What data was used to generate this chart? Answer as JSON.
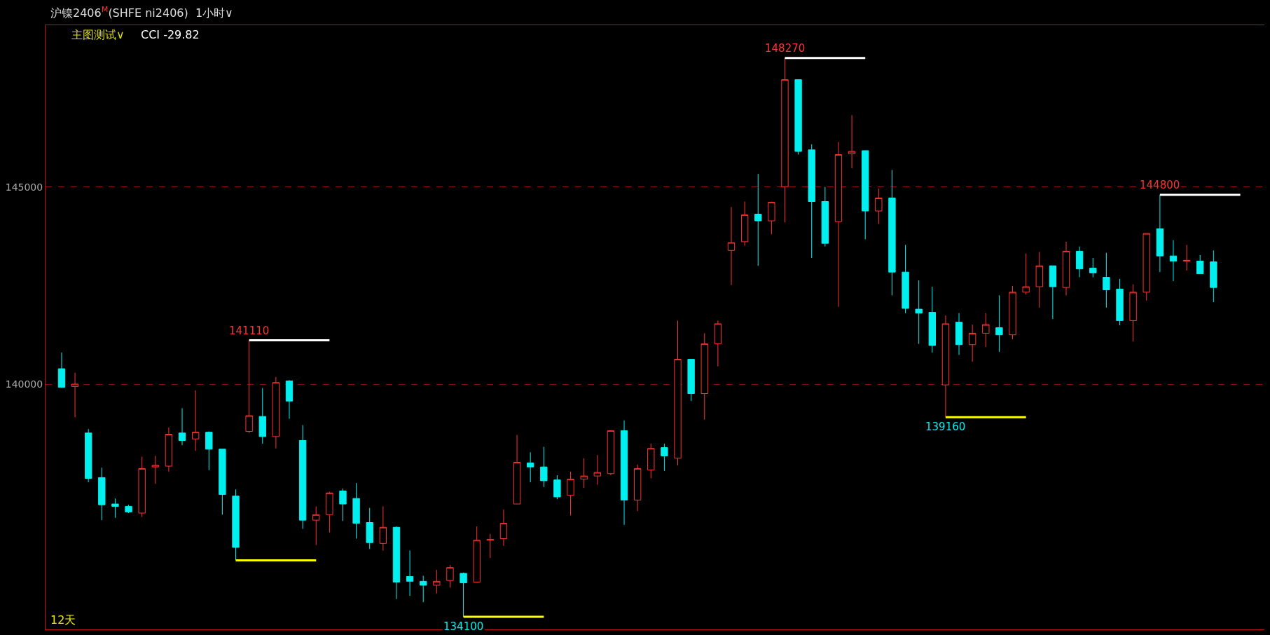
{
  "chart_data": {
    "type": "candlestick",
    "title": "沪镍2406$^{M}$(SHFE ni2406)  1小时∨",
    "subtitle": "主图测试∨",
    "annotations": [
      "CCI -29.82",
      "12天"
    ],
    "categories": [
      null,
      null,
      null,
      null,
      null,
      null,
      null,
      null,
      null,
      null,
      null,
      null,
      null,
      null,
      null,
      null,
      null,
      null,
      null,
      null,
      null,
      null,
      null,
      null,
      null,
      null,
      null,
      null,
      null,
      null,
      null,
      null,
      null,
      null,
      null,
      null,
      null,
      null,
      null,
      null,
      null,
      null,
      null,
      null,
      null,
      null,
      null,
      null,
      null,
      null,
      null,
      null,
      null,
      null,
      null,
      null,
      null,
      null,
      null,
      null,
      null,
      null,
      null,
      null,
      null,
      null,
      null,
      null,
      null,
      null,
      null,
      null,
      null,
      null,
      null,
      null,
      null,
      null,
      null,
      null,
      null,
      null,
      null,
      null,
      null,
      null,
      null,
      null,
      null
    ],
    "colors": [
      "#00f0f0",
      "#ff3232",
      "#00f0f0",
      "#00f0f0",
      "#00f0f0",
      "#00f0f0",
      "#ff3232",
      "#ff3232",
      "#ff3232",
      "#00f0f0",
      "#ff3232",
      "#00f0f0",
      "#00f0f0",
      "#00f0f0",
      "#ff3232",
      "#00f0f0",
      "#ff3232",
      "#00f0f0",
      "#00f0f0",
      "#ff3232",
      "#ff3232",
      "#00f0f0",
      "#00f0f0",
      "#00f0f0",
      "#ff3232",
      "#00f0f0",
      "#00f0f0",
      "#00f0f0",
      "#ff3232",
      "#ff3232",
      "#00f0f0",
      "#ff3232",
      "#ff3232",
      "#ff3232",
      "#ff3232",
      "#00f0f0",
      "#00f0f0",
      "#00f0f0",
      "#ff3232",
      "#ff3232",
      "#ff3232",
      "#ff3232",
      "#00f0f0",
      "#ff3232",
      "#ff3232",
      "#00f0f0",
      "#ff3232",
      "#00f0f0",
      "#ff3232",
      "#ff3232",
      "#ff3232",
      "#ff3232",
      "#00f0f0",
      "#ff3232",
      "#ff3232",
      "#00f0f0",
      "#00f0f0",
      "#00f0f0",
      "#ff3232",
      "#ff3232",
      "#00f0f0",
      "#ff3232",
      "#00f0f0",
      "#00f0f0",
      "#00f0f0",
      "#00f0f0",
      "#ff3232",
      "#00f0f0",
      "#ff3232",
      "#ff3232",
      "#00f0f0",
      "#ff3232",
      "#ff3232",
      "#ff3232",
      "#00f0f0",
      "#ff3232",
      "#00f0f0",
      "#00f0f0",
      "#00f0f0",
      "#00f0f0",
      "#ff3232",
      "#ff3232",
      "#00f0f0",
      "#00f0f0",
      "#ff3232",
      "#00f0f0",
      "#00f0f0",
      null,
      null
    ],
    "ohlc": [
      [
        140390,
        140800,
        139920,
        139920
      ],
      [
        139940,
        140290,
        139160,
        140000
      ],
      [
        138760,
        138860,
        137510,
        137610
      ],
      [
        137630,
        137880,
        136550,
        136940
      ],
      [
        136960,
        137100,
        136610,
        136900
      ],
      [
        136900,
        136940,
        136730,
        136760
      ],
      [
        136730,
        138160,
        136630,
        137860
      ],
      [
        137900,
        138180,
        137470,
        137940
      ],
      [
        137920,
        138900,
        137780,
        138730
      ],
      [
        138760,
        139390,
        138450,
        138570
      ],
      [
        138610,
        139840,
        138310,
        138780
      ],
      [
        138780,
        138800,
        137820,
        138350
      ],
      [
        138350,
        138350,
        136690,
        137200
      ],
      [
        137160,
        137330,
        135530,
        135860
      ],
      [
        138800,
        141110,
        138760,
        139200
      ],
      [
        139180,
        139900,
        138490,
        138670
      ],
      [
        138670,
        140180,
        138370,
        140040
      ],
      [
        140080,
        140100,
        139120,
        139570
      ],
      [
        138570,
        138960,
        136330,
        136550
      ],
      [
        136550,
        136900,
        135920,
        136690
      ],
      [
        136690,
        137270,
        136240,
        137240
      ],
      [
        137290,
        137350,
        136530,
        136960
      ],
      [
        137100,
        137490,
        136080,
        136470
      ],
      [
        136490,
        136860,
        135820,
        135980
      ],
      [
        135960,
        136900,
        135780,
        136370
      ],
      [
        136370,
        136390,
        134550,
        134980
      ],
      [
        135120,
        135780,
        134630,
        135000
      ],
      [
        135000,
        135140,
        134470,
        134900
      ],
      [
        134900,
        135290,
        134690,
        135000
      ],
      [
        135020,
        135410,
        134840,
        135350
      ],
      [
        135200,
        135220,
        134100,
        134960
      ],
      [
        134980,
        136390,
        134980,
        136040
      ],
      [
        136040,
        136200,
        135590,
        136060
      ],
      [
        136080,
        136820,
        135900,
        136470
      ],
      [
        136960,
        138710,
        136960,
        138020
      ],
      [
        138000,
        138270,
        137510,
        137900
      ],
      [
        137900,
        138410,
        137390,
        137550
      ],
      [
        137570,
        137690,
        137080,
        137140
      ],
      [
        137180,
        137780,
        136670,
        137590
      ],
      [
        137590,
        138120,
        137370,
        137670
      ],
      [
        137670,
        138200,
        137450,
        137760
      ],
      [
        137730,
        138820,
        137690,
        138820
      ],
      [
        138820,
        139080,
        136430,
        137060
      ],
      [
        137060,
        137960,
        136780,
        137860
      ],
      [
        137820,
        138490,
        137610,
        138370
      ],
      [
        138390,
        138490,
        137800,
        138180
      ],
      [
        138120,
        141610,
        137940,
        140630
      ],
      [
        140630,
        140630,
        139570,
        139760
      ],
      [
        139760,
        141290,
        139100,
        141020
      ],
      [
        141020,
        141610,
        140450,
        141530
      ],
      [
        143390,
        144490,
        142510,
        143590
      ],
      [
        143610,
        144630,
        143510,
        144290
      ],
      [
        144310,
        145330,
        143000,
        144140
      ],
      [
        144140,
        144630,
        143800,
        144610
      ],
      [
        145000,
        148270,
        144100,
        147720
      ],
      [
        147720,
        147720,
        145820,
        145900
      ],
      [
        145940,
        146080,
        143200,
        144630
      ],
      [
        144630,
        145000,
        143490,
        143570
      ],
      [
        144120,
        146140,
        141960,
        145820
      ],
      [
        145840,
        146820,
        145470,
        145900
      ],
      [
        145920,
        145920,
        143670,
        144390
      ],
      [
        144390,
        144960,
        144060,
        144720
      ],
      [
        144720,
        145430,
        142250,
        142840
      ],
      [
        142840,
        143530,
        141800,
        141920
      ],
      [
        141900,
        142630,
        141020,
        141800
      ],
      [
        141820,
        142470,
        140800,
        140980
      ],
      [
        139980,
        141740,
        139160,
        141530
      ],
      [
        141570,
        141800,
        140740,
        141000
      ],
      [
        141000,
        141510,
        140570,
        141290
      ],
      [
        141290,
        141800,
        140940,
        141510
      ],
      [
        141430,
        142250,
        140820,
        141250
      ],
      [
        141250,
        142490,
        141140,
        142330
      ],
      [
        142330,
        143310,
        142270,
        142470
      ],
      [
        142470,
        143350,
        141940,
        143000
      ],
      [
        143000,
        143000,
        141650,
        142470
      ],
      [
        142450,
        143610,
        142250,
        143370
      ],
      [
        143370,
        143490,
        142710,
        142920
      ],
      [
        142940,
        143200,
        142710,
        142820
      ],
      [
        142710,
        143330,
        141940,
        142390
      ],
      [
        142410,
        142670,
        141490,
        141610
      ],
      [
        141610,
        142530,
        141080,
        142330
      ],
      [
        142330,
        143820,
        142120,
        143820
      ],
      [
        143940,
        144800,
        142840,
        143250
      ],
      [
        143250,
        143650,
        142610,
        143120
      ],
      [
        143120,
        143530,
        142880,
        143140
      ],
      [
        143120,
        143270,
        142800,
        142800
      ],
      [
        143100,
        143390,
        142080,
        142450
      ],
      null,
      null
    ],
    "series": [
      {
        "type": "line",
        "color": "#ffffff",
        "values": [
          null,
          null,
          null,
          null,
          null,
          null,
          null,
          null,
          null,
          null,
          null,
          null,
          null,
          null,
          141110,
          141110,
          141110,
          141110,
          141110,
          141110,
          141110,
          null,
          null,
          null,
          null,
          null,
          null,
          null,
          null,
          null,
          null,
          null,
          null,
          null,
          null,
          null,
          null,
          null,
          null,
          null,
          null,
          null,
          null,
          null,
          null,
          null,
          null,
          null,
          null,
          null,
          null,
          null,
          null,
          null,
          null,
          null,
          null,
          null,
          null,
          null,
          null,
          null,
          null,
          null,
          null,
          null,
          null,
          null,
          null,
          null,
          null,
          null,
          null,
          null,
          null,
          null,
          null,
          null,
          null,
          null,
          null,
          null,
          null,
          null,
          null,
          null,
          null,
          null,
          null
        ],
        "value_labels": [
          null,
          null,
          null,
          null,
          null,
          null,
          null,
          null,
          null,
          null,
          null,
          null,
          null,
          null,
          "141110",
          null,
          null,
          null,
          null,
          null,
          null,
          null,
          null,
          null,
          null,
          null,
          null,
          null,
          null,
          null,
          null,
          null,
          null,
          null,
          null,
          null,
          null,
          null,
          null,
          null,
          null,
          null,
          null,
          null,
          null,
          null,
          null,
          null,
          null,
          null,
          null,
          null,
          null,
          null,
          null,
          null,
          null,
          null,
          null,
          null,
          null,
          null,
          null,
          null,
          null,
          null,
          null,
          null,
          null,
          null,
          null,
          null,
          null,
          null,
          null,
          null,
          null,
          null,
          null,
          null,
          null,
          null,
          null,
          null,
          null,
          null,
          null,
          null,
          null
        ]
      },
      {
        "type": "line",
        "color": "#ffff00",
        "values": [
          null,
          null,
          null,
          null,
          null,
          null,
          null,
          null,
          null,
          null,
          null,
          null,
          null,
          135530,
          135530,
          135530,
          135530,
          135530,
          135530,
          135530,
          null,
          null,
          null,
          null,
          null,
          null,
          null,
          null,
          null,
          null,
          null,
          null,
          null,
          null,
          null,
          null,
          null,
          null,
          null,
          null,
          null,
          null,
          null,
          null,
          null,
          null,
          null,
          null,
          null,
          null,
          null,
          null,
          null,
          null,
          null,
          null,
          null,
          null,
          null,
          null,
          null,
          null,
          null,
          null,
          null,
          null,
          null,
          null,
          null,
          null,
          null,
          null,
          null,
          null,
          null,
          null,
          null,
          null,
          null,
          null,
          null,
          null,
          null,
          null,
          null,
          null,
          null,
          null,
          null
        ]
      },
      {
        "type": "line",
        "color": "#ffff00",
        "values": [
          null,
          null,
          null,
          null,
          null,
          null,
          null,
          null,
          null,
          null,
          null,
          null,
          null,
          null,
          null,
          null,
          null,
          null,
          null,
          null,
          null,
          null,
          null,
          null,
          null,
          null,
          null,
          null,
          null,
          null,
          134100,
          134100,
          134100,
          134100,
          134100,
          134100,
          134100,
          null,
          null,
          null,
          null,
          null,
          null,
          null,
          null,
          null,
          null,
          null,
          null,
          null,
          null,
          null,
          null,
          null,
          null,
          null,
          null,
          null,
          null,
          null,
          null,
          null,
          null,
          null,
          null,
          null,
          null,
          null,
          null,
          null,
          null,
          null,
          null,
          null,
          null,
          null,
          null,
          null,
          null,
          null,
          null,
          null,
          null,
          null,
          null,
          null,
          null,
          null,
          null
        ],
        "value_labels": [
          null,
          null,
          null,
          null,
          null,
          null,
          null,
          null,
          null,
          null,
          null,
          null,
          null,
          null,
          null,
          null,
          null,
          null,
          null,
          null,
          null,
          null,
          null,
          null,
          null,
          null,
          null,
          null,
          null,
          null,
          "134100",
          null,
          null,
          null,
          null,
          null,
          null,
          null,
          null,
          null,
          null,
          null,
          null,
          null,
          null,
          null,
          null,
          null,
          null,
          null,
          null,
          null,
          null,
          null,
          null,
          null,
          null,
          null,
          null,
          null,
          null,
          null,
          null,
          null,
          null,
          null,
          null,
          null,
          null,
          null,
          null,
          null,
          null,
          null,
          null,
          null,
          null,
          null,
          null,
          null,
          null,
          null,
          null,
          null,
          null,
          null,
          null,
          null,
          null
        ]
      },
      {
        "type": "line",
        "color": "#ffffff",
        "values": [
          null,
          null,
          null,
          null,
          null,
          null,
          null,
          null,
          null,
          null,
          null,
          null,
          null,
          null,
          null,
          null,
          null,
          null,
          null,
          null,
          null,
          null,
          null,
          null,
          null,
          null,
          null,
          null,
          null,
          null,
          null,
          null,
          null,
          null,
          null,
          null,
          null,
          null,
          null,
          null,
          null,
          null,
          null,
          null,
          null,
          null,
          null,
          null,
          null,
          null,
          null,
          null,
          null,
          null,
          148270,
          148270,
          148270,
          148270,
          148270,
          148270,
          148270,
          null,
          null,
          null,
          null,
          null,
          null,
          null,
          null,
          null,
          null,
          null,
          null,
          null,
          null,
          null,
          null,
          null,
          null,
          null,
          null,
          null,
          null,
          null,
          null,
          null,
          null,
          null,
          null
        ],
        "value_labels": [
          null,
          null,
          null,
          null,
          null,
          null,
          null,
          null,
          null,
          null,
          null,
          null,
          null,
          null,
          null,
          null,
          null,
          null,
          null,
          null,
          null,
          null,
          null,
          null,
          null,
          null,
          null,
          null,
          null,
          null,
          null,
          null,
          null,
          null,
          null,
          null,
          null,
          null,
          null,
          null,
          null,
          null,
          null,
          null,
          null,
          null,
          null,
          null,
          null,
          null,
          null,
          null,
          null,
          null,
          "148270",
          null,
          null,
          null,
          null,
          null,
          null,
          null,
          null,
          null,
          null,
          null,
          null,
          null,
          null,
          null,
          null,
          null,
          null,
          null,
          null,
          null,
          null,
          null,
          null,
          null,
          null,
          null,
          null,
          null,
          null,
          null,
          null,
          null,
          null
        ]
      },
      {
        "type": "line",
        "color": "#ffff00",
        "values": [
          null,
          null,
          null,
          null,
          null,
          null,
          null,
          null,
          null,
          null,
          null,
          null,
          null,
          null,
          null,
          null,
          null,
          null,
          null,
          null,
          null,
          null,
          null,
          null,
          null,
          null,
          null,
          null,
          null,
          null,
          null,
          null,
          null,
          null,
          null,
          null,
          null,
          null,
          null,
          null,
          null,
          null,
          null,
          null,
          null,
          null,
          null,
          null,
          null,
          null,
          null,
          null,
          null,
          null,
          null,
          null,
          null,
          null,
          null,
          null,
          null,
          null,
          null,
          null,
          null,
          null,
          139160,
          139160,
          139160,
          139160,
          139160,
          139160,
          139160,
          null,
          null,
          null,
          null,
          null,
          null,
          null,
          null,
          null,
          null,
          null,
          null,
          null,
          null,
          null,
          null
        ],
        "value_labels": [
          null,
          null,
          null,
          null,
          null,
          null,
          null,
          null,
          null,
          null,
          null,
          null,
          null,
          null,
          null,
          null,
          null,
          null,
          null,
          null,
          null,
          null,
          null,
          null,
          null,
          null,
          null,
          null,
          null,
          null,
          null,
          null,
          null,
          null,
          null,
          null,
          null,
          null,
          null,
          null,
          null,
          null,
          null,
          null,
          null,
          null,
          null,
          null,
          null,
          null,
          null,
          null,
          null,
          null,
          null,
          null,
          null,
          null,
          null,
          null,
          null,
          null,
          null,
          null,
          null,
          null,
          "139160",
          null,
          null,
          null,
          null,
          null,
          null,
          null,
          null,
          null,
          null,
          null,
          null,
          null,
          null,
          null,
          null,
          null,
          null,
          null,
          null,
          null,
          null
        ]
      },
      {
        "type": "line",
        "color": "#ffffff",
        "values": [
          null,
          null,
          null,
          null,
          null,
          null,
          null,
          null,
          null,
          null,
          null,
          null,
          null,
          null,
          null,
          null,
          null,
          null,
          null,
          null,
          null,
          null,
          null,
          null,
          null,
          null,
          null,
          null,
          null,
          null,
          null,
          null,
          null,
          null,
          null,
          null,
          null,
          null,
          null,
          null,
          null,
          null,
          null,
          null,
          null,
          null,
          null,
          null,
          null,
          null,
          null,
          null,
          null,
          null,
          null,
          null,
          null,
          null,
          null,
          null,
          null,
          null,
          null,
          null,
          null,
          null,
          null,
          null,
          null,
          null,
          null,
          null,
          null,
          null,
          null,
          null,
          null,
          null,
          null,
          null,
          null,
          null,
          144800,
          144800,
          144800,
          144800,
          144800,
          144800,
          144800
        ],
        "value_labels": [
          null,
          null,
          null,
          null,
          null,
          null,
          null,
          null,
          null,
          null,
          null,
          null,
          null,
          null,
          null,
          null,
          null,
          null,
          null,
          null,
          null,
          null,
          null,
          null,
          null,
          null,
          null,
          null,
          null,
          null,
          null,
          null,
          null,
          null,
          null,
          null,
          null,
          null,
          null,
          null,
          null,
          null,
          null,
          null,
          null,
          null,
          null,
          null,
          null,
          null,
          null,
          null,
          null,
          null,
          null,
          null,
          null,
          null,
          null,
          null,
          null,
          null,
          null,
          null,
          null,
          null,
          null,
          null,
          null,
          null,
          null,
          null,
          null,
          null,
          null,
          null,
          null,
          null,
          null,
          null,
          null,
          null,
          "144800",
          null,
          null,
          null,
          null,
          null,
          null
        ]
      }
    ],
    "ylim": [
      133780,
      149100
    ],
    "yticks": [
      140000,
      145000
    ],
    "grid": "y",
    "tick_labels": "y"
  }
}
